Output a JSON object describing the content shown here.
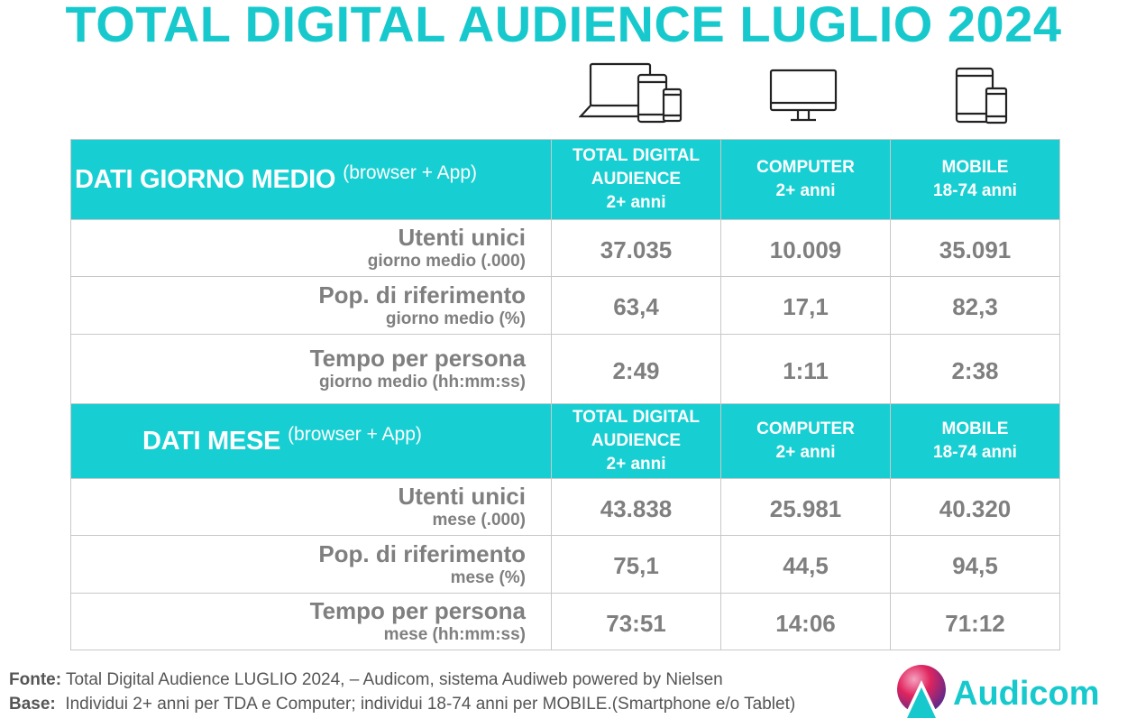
{
  "title": "TOTAL DIGITAL AUDIENCE LUGLIO 2024",
  "icons": [
    "all-devices-icon",
    "computer-monitor-icon",
    "mobile-tablet-icon"
  ],
  "colors": {
    "accent": "#17cfd2",
    "title": "#17c9cc",
    "text_gray": "#7f7f7f"
  },
  "sections": [
    {
      "title": "DATI GIORNO MEDIO",
      "subtitle": "(browser + App)",
      "columns": [
        {
          "line1": "TOTAL DIGITAL",
          "line2": "AUDIENCE",
          "line3": "2+ anni"
        },
        {
          "line1": "COMPUTER",
          "line2": "2+ anni"
        },
        {
          "line1": "MOBILE",
          "line2": "18-74 anni"
        }
      ],
      "rows": [
        {
          "label": "Utenti unici",
          "sublabel": "giorno medio (.000)",
          "values": [
            "37.035",
            "10.009",
            "35.091"
          ]
        },
        {
          "label": "Pop. di riferimento",
          "sublabel": "giorno medio (%)",
          "values": [
            "63,4",
            "17,1",
            "82,3"
          ]
        },
        {
          "label": "Tempo per persona",
          "sublabel": "giorno medio (hh:mm:ss)",
          "values": [
            "2:49",
            "1:11",
            "2:38"
          ]
        }
      ]
    },
    {
      "title": "DATI MESE",
      "subtitle": "(browser + App)",
      "columns": [
        {
          "line1": "TOTAL DIGITAL",
          "line2": "AUDIENCE",
          "line3": "2+ anni"
        },
        {
          "line1": "COMPUTER",
          "line2": "2+ anni"
        },
        {
          "line1": "MOBILE",
          "line2": "18-74 anni"
        }
      ],
      "rows": [
        {
          "label": "Utenti unici",
          "sublabel": "mese (.000)",
          "values": [
            "43.838",
            "25.981",
            "40.320"
          ]
        },
        {
          "label": "Pop. di riferimento",
          "sublabel": "mese (%)",
          "values": [
            "75,1",
            "44,5",
            "94,5"
          ]
        },
        {
          "label": "Tempo per persona",
          "sublabel": "mese (hh:mm:ss)",
          "values": [
            "73:51",
            "14:06",
            "71:12"
          ]
        }
      ]
    }
  ],
  "footer": {
    "fonte_label": "Fonte:",
    "fonte_text": "Total Digital Audience LUGLIO 2024, – Audicom, sistema Audiweb powered by Nielsen",
    "base_label": "Base:",
    "base_text": "Individui 2+ anni per TDA e Computer; individui 18-74 anni per MOBILE.(Smartphone e/o Tablet)"
  },
  "logo": {
    "text": "Audicom"
  }
}
